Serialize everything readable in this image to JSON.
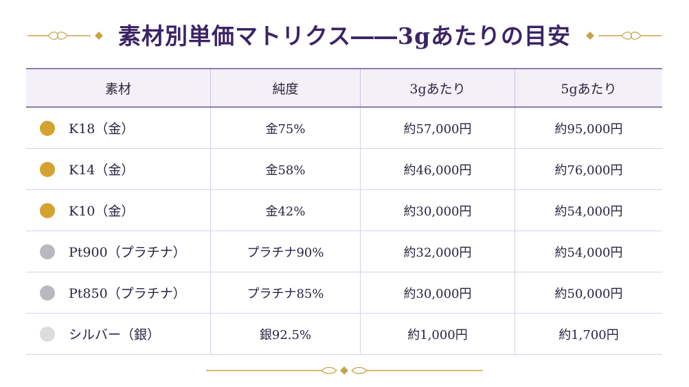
{
  "title": "素材別単価マトリクス――3gあたりの目安",
  "table": {
    "headers": [
      "素材",
      "純度",
      "3gあたり",
      "5gあたり"
    ],
    "rows": [
      {
        "material": "K18（金）",
        "purity": "金75%",
        "price_3g": "約57,000円",
        "price_5g": "約95,000円",
        "dot_color": "#d4a22e"
      },
      {
        "material": "K14（金）",
        "purity": "金58%",
        "price_3g": "約46,000円",
        "price_5g": "約76,000円",
        "dot_color": "#d4a22e"
      },
      {
        "material": "K10（金）",
        "purity": "金42%",
        "price_3g": "約30,000円",
        "price_5g": "約54,000円",
        "dot_color": "#d4a22e"
      },
      {
        "material": "Pt900（プラチナ）",
        "purity": "プラチナ90%",
        "price_3g": "約32,000円",
        "price_5g": "約54,000円",
        "dot_color": "#b9b8c0"
      },
      {
        "material": "Pt850（プラチナ）",
        "purity": "プラチナ85%",
        "price_3g": "約30,000円",
        "price_5g": "約50,000円",
        "dot_color": "#b9b8c0"
      },
      {
        "material": "シルバー（銀）",
        "purity": "銀92.5%",
        "price_3g": "約1,000円",
        "price_5g": "約1,700円",
        "dot_color": "#dcdcdf"
      }
    ]
  },
  "colors": {
    "accent": "#3b2466",
    "gold": "#c9a24a",
    "rule": "#8e77b3"
  }
}
